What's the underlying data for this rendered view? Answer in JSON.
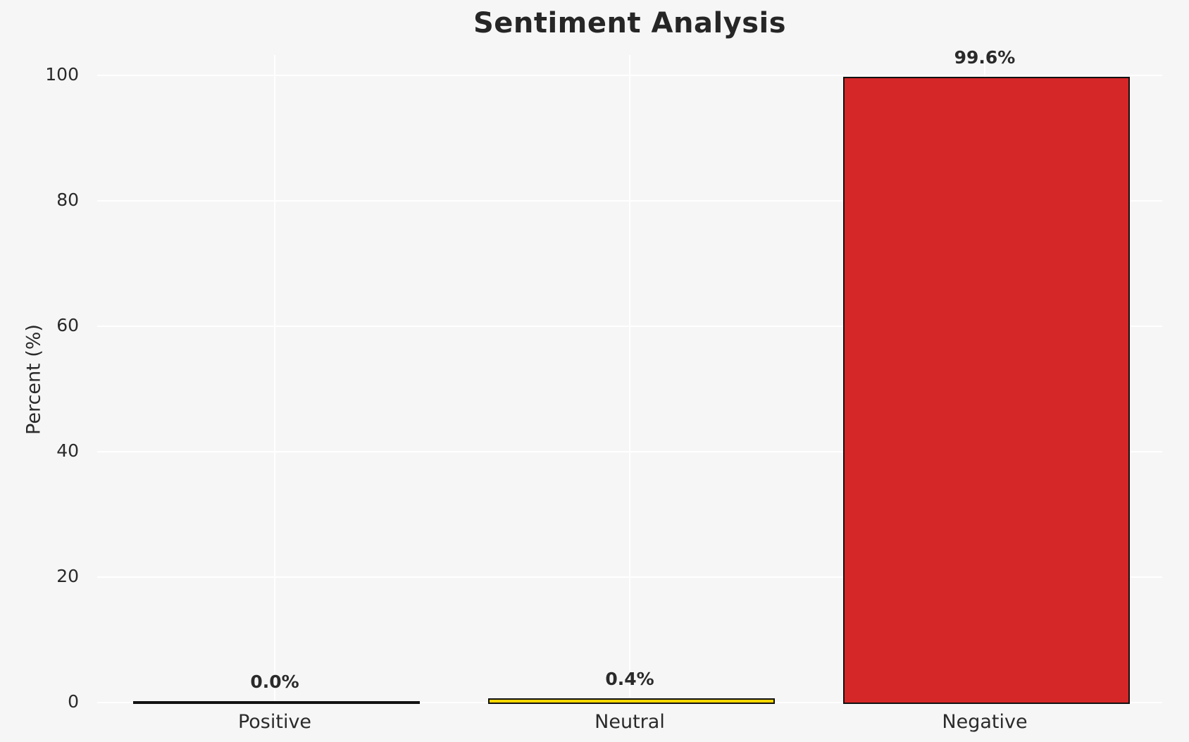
{
  "chart_data": {
    "type": "bar",
    "title": "Sentiment Analysis",
    "xlabel": "",
    "ylabel": "Percent (%)",
    "categories": [
      "Positive",
      "Neutral",
      "Negative"
    ],
    "values": [
      0.0,
      0.4,
      99.6
    ],
    "value_labels": [
      "0.0%",
      "0.4%",
      "99.6%"
    ],
    "bar_colors": [
      "#9e9e9e",
      "#ffd700",
      "#d62728"
    ],
    "bar_edge_color": "#111111",
    "yticks": [
      "0",
      "20",
      "40",
      "60",
      "80",
      "100"
    ],
    "ytick_values": [
      0,
      20,
      40,
      60,
      80,
      100
    ],
    "ylim": [
      0,
      103
    ],
    "grid": "on",
    "legend_position": "none",
    "background_color": "#f6f6f6",
    "gridline_color": "#ffffff"
  }
}
